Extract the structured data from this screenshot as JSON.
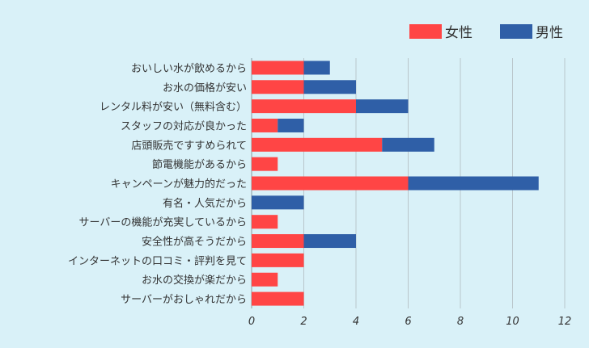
{
  "chart_data": {
    "type": "bar",
    "orientation": "horizontal",
    "stacked": true,
    "categories": [
      "おいしい水が飲めるから",
      "お水の価格が安い",
      "レンタル料が安い（無料含む）",
      "スタッフの対応が良かった",
      "店頭販売ですすめられて",
      "節電機能があるから",
      "キャンペーンが魅力的だった",
      "有名・人気だから",
      "サーバーの機能が充実しているから",
      "安全性が高そうだから",
      "インターネットの口コミ・評判を見て",
      "お水の交換が楽だから",
      "サーバーがおしゃれだから"
    ],
    "series": [
      {
        "name": "女性",
        "color": "#ff4545",
        "values": [
          2,
          2,
          4,
          1,
          5,
          1,
          6,
          0,
          1,
          2,
          2,
          1,
          2
        ]
      },
      {
        "name": "男性",
        "color": "#2f5fa7",
        "values": [
          1,
          2,
          2,
          1,
          2,
          0,
          5,
          2,
          0,
          2,
          0,
          0,
          0
        ]
      }
    ],
    "xlim": [
      0,
      12
    ],
    "xticks": [
      "0",
      "2",
      "4",
      "6",
      "8",
      "10",
      "12"
    ],
    "grid": true,
    "legend_position": "top-right"
  }
}
